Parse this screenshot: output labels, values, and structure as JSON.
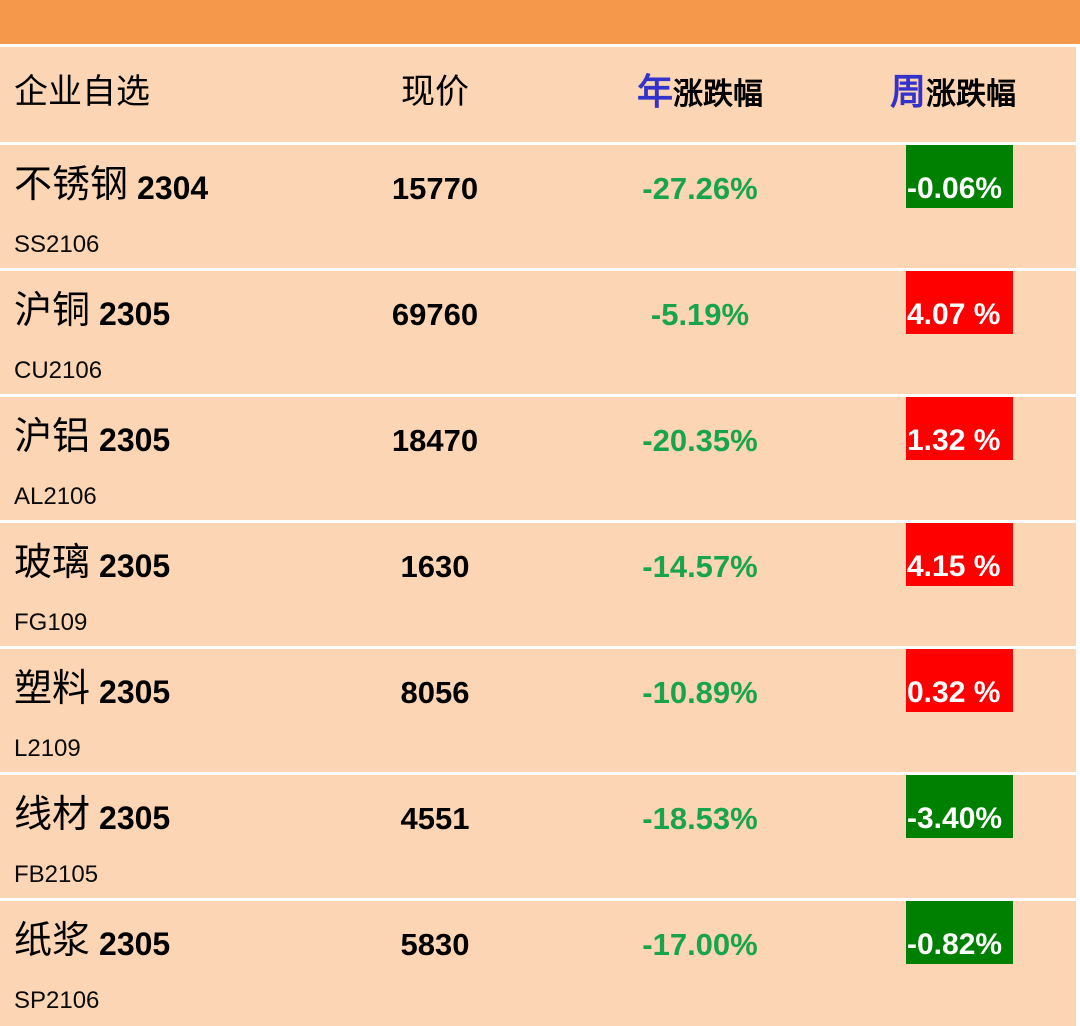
{
  "header": {
    "watchlist_label": "企业自选",
    "price_label": "现价",
    "year_prefix": "年",
    "year_suffix": "涨跌幅",
    "week_prefix": "周",
    "week_suffix": "涨跌幅"
  },
  "colors": {
    "accent_bar": "#F5984B",
    "row_background": "#FCD5B4",
    "separator": "#FFFFFF",
    "year_change_green": "#17A44D",
    "week_up_red": "#FE0000",
    "week_down_green": "#008000",
    "header_blue": "#3333CC"
  },
  "rows": [
    {
      "name": "不锈钢",
      "contract": "2304",
      "code": "SS2106",
      "price": "15770",
      "year_change": "-27.26%",
      "week_change": "-0.06%",
      "week_direction": "down"
    },
    {
      "name": "沪铜",
      "contract": "2305",
      "code": "CU2106",
      "price": "69760",
      "year_change": "-5.19%",
      "week_change": "4.07 %",
      "week_direction": "up"
    },
    {
      "name": "沪铝",
      "contract": "2305",
      "code": "AL2106",
      "price": "18470",
      "year_change": "-20.35%",
      "week_change": "1.32 %",
      "week_direction": "up"
    },
    {
      "name": "玻璃",
      "contract": "2305",
      "code": "FG109",
      "price": "1630",
      "year_change": "-14.57%",
      "week_change": "4.15 %",
      "week_direction": "up"
    },
    {
      "name": "塑料",
      "contract": "2305",
      "code": "L2109",
      "price": "8056",
      "year_change": "-10.89%",
      "week_change": "0.32 %",
      "week_direction": "up"
    },
    {
      "name": "线材",
      "contract": "2305",
      "code": "FB2105",
      "price": "4551",
      "year_change": "-18.53%",
      "week_change": "-3.40%",
      "week_direction": "down"
    },
    {
      "name": "纸浆",
      "contract": "2305",
      "code": "SP2106",
      "price": "5830",
      "year_change": "-17.00%",
      "week_change": "-0.82%",
      "week_direction": "down"
    }
  ]
}
